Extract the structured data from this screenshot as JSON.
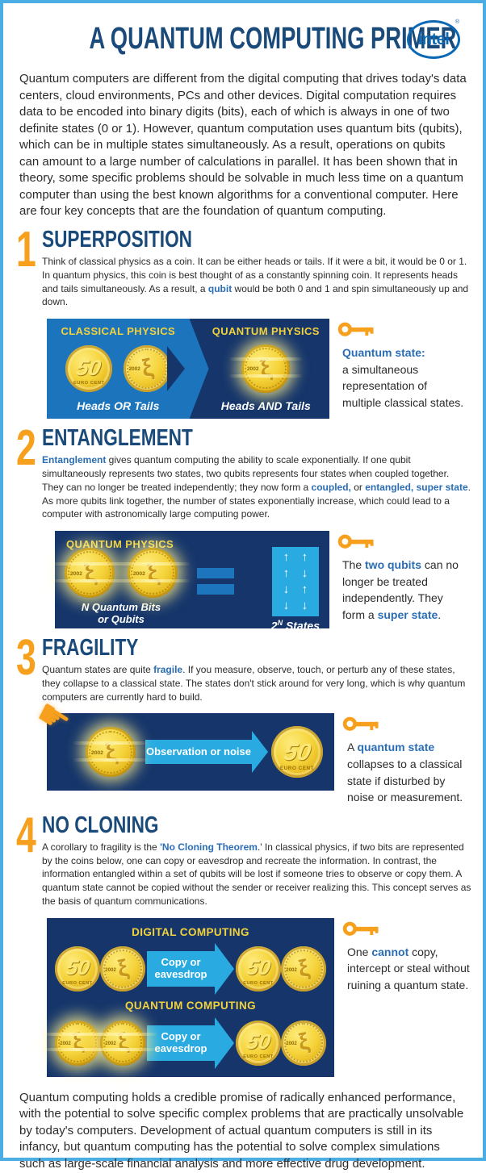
{
  "page": {
    "title": "A QUANTUM COMPUTING PRIMER",
    "logo_text": "intel",
    "logo_reg": "®",
    "intro": "Quantum computers are different from the digital computing that drives today's data centers, cloud environments, PCs and other devices. Digital computation requires data to be encoded into binary digits (bits), each of which is always in one of two definite states (0 or 1). However, quantum computation uses quantum bits (qubits), which can be in multiple states simultaneously. As a result, operations on qubits can amount to a large number of calculations in parallel. It has been shown that in theory, some specific problems should be solvable in much less time on a quantum computer than using the best known algorithms for a conventional computer. Here are four key concepts that are the foundation of quantum computing.",
    "outro": "Quantum computing holds a credible promise of radically enhanced performance, with the potential to solve specific complex problems that are practically unsolvable by today's computers. Development of actual quantum computers is still in its infancy, but quantum computing has the potential to solve complex simulations such as large-scale financial analysis and more effective drug development."
  },
  "coin": {
    "value": "50",
    "unit": "EURO CENT",
    "year": "2002"
  },
  "icons": {
    "hand": "☛"
  },
  "colors": {
    "border_blue": "#4aaee4",
    "navy_heading": "#1a4a7a",
    "accent_orange": "#f6a01d",
    "panel_navy": "#15356b",
    "panel_blue": "#1c75bc",
    "light_blue": "#29abe2",
    "yellow": "#f2d23c",
    "link_blue": "#2a6db5",
    "intel_blue": "#0a68b4",
    "coin_gold": "#f5d33a"
  },
  "sections": [
    {
      "number": "1",
      "title": "SUPERPOSITION",
      "body": [
        {
          "t": "Think of classical physics as a coin. It can be either heads or tails. If it were a bit, it would be 0 or 1. In quantum physics, this coin is best thought of as a constantly spinning coin. It represents heads and tails simultaneously. As a result, a "
        },
        {
          "t": "qubit",
          "b": true
        },
        {
          "t": " would be both 0 and 1 and spin simultaneously up and down."
        }
      ],
      "figure": {
        "left_title": "CLASSICAL PHYSICS",
        "left_caption": "Heads OR Tails",
        "right_title": "QUANTUM PHYSICS",
        "right_caption": "Heads AND Tails"
      },
      "note": [
        {
          "t": "Quantum state:",
          "b": true
        },
        {
          "br": true
        },
        {
          "t": "a simultaneous representation of multiple classical states."
        }
      ]
    },
    {
      "number": "2",
      "title": "ENTANGLEMENT",
      "body": [
        {
          "t": "Entanglement",
          "b": true
        },
        {
          "t": " gives quantum computing the ability to scale exponentially. If one qubit simultaneously represents two states, two qubits represents four states when coupled together. They can no longer be treated independently; they now form a "
        },
        {
          "t": "coupled,",
          "b": true
        },
        {
          "t": " or "
        },
        {
          "t": "entangled,",
          "b": true
        },
        {
          "t": " "
        },
        {
          "t": "super state",
          "b": true
        },
        {
          "t": ". As more qubits link together, the number of states exponentially increase, which could lead to a computer with astronomically large computing power."
        }
      ],
      "figure": {
        "title": "QUANTUM PHYSICS",
        "coins_caption_line1": "N Quantum Bits",
        "coins_caption_line2": "or Qubits",
        "states_label_base": "2",
        "states_label_sup": "N",
        "states_label_rest": " States",
        "arrows": [
          [
            "↑",
            "↑"
          ],
          [
            "↑",
            "↓"
          ],
          [
            "↓",
            "↑"
          ],
          [
            "↓",
            "↓"
          ]
        ]
      },
      "note": [
        {
          "t": "The "
        },
        {
          "t": "two qubits",
          "b": true
        },
        {
          "t": " can no longer be treated independently. They form a "
        },
        {
          "t": "super state",
          "b": true
        },
        {
          "t": "."
        }
      ]
    },
    {
      "number": "3",
      "title": "FRAGILITY",
      "body": [
        {
          "t": "Quantum states are quite "
        },
        {
          "t": "fragile",
          "b": true
        },
        {
          "t": ". If you measure, observe, touch, or perturb any of these states, they collapse to a classical state. The states don't stick around for very long, which is why quantum computers are currently hard to build."
        }
      ],
      "figure": {
        "arrow_label": "Observation or noise"
      },
      "note": [
        {
          "t": "A "
        },
        {
          "t": "quantum state",
          "b": true
        },
        {
          "t": " collapses to a classical state if disturbed by noise or measurement."
        }
      ]
    },
    {
      "number": "4",
      "title": "NO CLONING",
      "body": [
        {
          "t": "A corollary to fragility is the "
        },
        {
          "t": "'No Cloning Theorem",
          "b": true
        },
        {
          "t": ".' In classical physics, if two bits are represented by the coins below, one can copy or eavesdrop and recreate the information. In contrast, the information entangled within a set of qubits will be lost if someone tries to observe or copy them. A quantum state cannot be copied without the sender or receiver realizing this. This concept serves as the basis of quantum communications."
        }
      ],
      "figure": {
        "top_title": "DIGITAL COMPUTING",
        "bottom_title": "QUANTUM COMPUTING",
        "arrow_label_line1": "Copy or",
        "arrow_label_line2": "eavesdrop"
      },
      "note": [
        {
          "t": "One "
        },
        {
          "t": "cannot",
          "b": true
        },
        {
          "t": " copy, intercept or steal without ruining a quantum state."
        }
      ]
    }
  ]
}
